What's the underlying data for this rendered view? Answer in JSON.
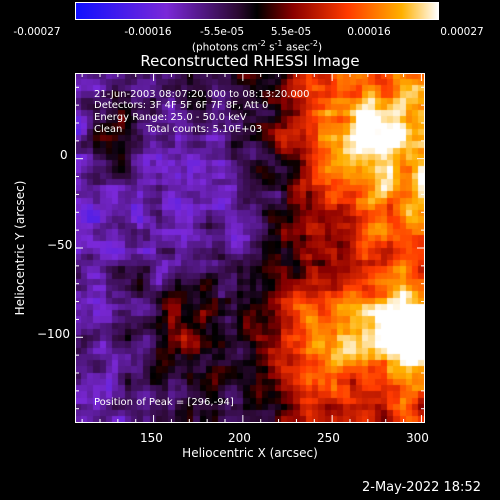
{
  "colorbar": {
    "tick_labels": [
      "-0.00027",
      "-0.00016",
      "-5.5e-05",
      "5.5e-05",
      "0.00016",
      "0.00027"
    ],
    "units_text": "(photons cm",
    "units_exp1": "-2",
    "units_mid": " s",
    "units_exp2": "-1",
    "units_mid2": " asec",
    "units_exp3": "-2",
    "units_end": ")",
    "range": [
      -0.00027,
      0.00027
    ]
  },
  "chart_data": {
    "type": "heatmap",
    "title": "Reconstructed RHESSI Image",
    "xlabel": "Heliocentric X (arcsec)",
    "ylabel": "Heliocentric Y (arcsec)",
    "xlim": [
      106,
      302
    ],
    "ylim": [
      -148,
      48
    ],
    "x_ticks": [
      150,
      200,
      250,
      300
    ],
    "y_ticks": [
      0,
      -50,
      -100
    ],
    "x_tick_labels": [
      "150",
      "200",
      "250",
      "300"
    ],
    "y_tick_labels": [
      "0",
      "−50",
      "−100"
    ],
    "peak": [
      296,
      -94
    ],
    "annotations": {
      "time_range": "21-Jun-2003 08:07:20.000 to 08:13:20.000",
      "detectors": "Detectors: 3F 4F 5F 6F 7F 8F, Att 0",
      "energy": "Energy Range: 25.0 - 50.0 keV",
      "clean_label": "Clean",
      "total_counts": "Total counts: 5.10E+03",
      "peak_label": "Position of Peak = [296,-94]"
    }
  },
  "footer": {
    "timestamp": "2-May-2022 18:52"
  },
  "colors": {
    "low": "#1a1aff",
    "mid_low": "#8a2be2",
    "mid": "#000000",
    "mid_high": "#ff2a00",
    "high": "#ffffff"
  }
}
